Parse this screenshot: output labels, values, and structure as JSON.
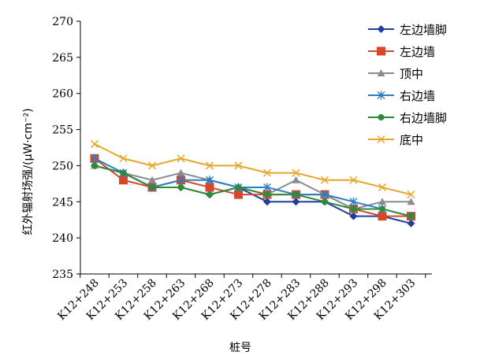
{
  "chart_data": {
    "type": "line",
    "title": "",
    "xlabel": "桩号",
    "ylabel": "红外辐射场强/(μW·cm⁻²)",
    "ylim": [
      235,
      270
    ],
    "yticks": [
      235,
      240,
      245,
      250,
      255,
      260,
      265,
      270
    ],
    "grid": false,
    "legend_position": "right",
    "categories": [
      "K12+248",
      "K12+253",
      "K12+258",
      "K12+263",
      "K12+268",
      "K12+273",
      "K12+278",
      "K12+283",
      "K12+288",
      "K12+293",
      "K12+298",
      "K12+303"
    ],
    "series": [
      {
        "name": "左边墙脚",
        "color": "#1f3e9e",
        "marker": "diamond",
        "values": [
          250,
          249,
          247,
          247,
          246,
          247,
          245,
          245,
          245,
          243,
          243,
          242
        ]
      },
      {
        "name": "左边墙",
        "color": "#d9472b",
        "marker": "square",
        "values": [
          251,
          248,
          247,
          248,
          247,
          246,
          246,
          246,
          246,
          244,
          243,
          243
        ]
      },
      {
        "name": "顶中",
        "color": "#8c8c8c",
        "marker": "triangle",
        "values": [
          250,
          249,
          248,
          249,
          248,
          247,
          246,
          248,
          246,
          244,
          245,
          245
        ]
      },
      {
        "name": "右边墙",
        "color": "#2a7fc4",
        "marker": "asterisk",
        "values": [
          251,
          249,
          247,
          248,
          248,
          247,
          247,
          246,
          246,
          245,
          244,
          243
        ]
      },
      {
        "name": "右边墙脚",
        "color": "#2e8b3a",
        "marker": "circle",
        "values": [
          250,
          249,
          247,
          247,
          246,
          247,
          246,
          246,
          245,
          244,
          244,
          243
        ]
      },
      {
        "name": "底中",
        "color": "#e8a628",
        "marker": "x",
        "values": [
          253,
          251,
          250,
          251,
          250,
          250,
          249,
          249,
          248,
          248,
          247,
          246
        ]
      }
    ]
  }
}
